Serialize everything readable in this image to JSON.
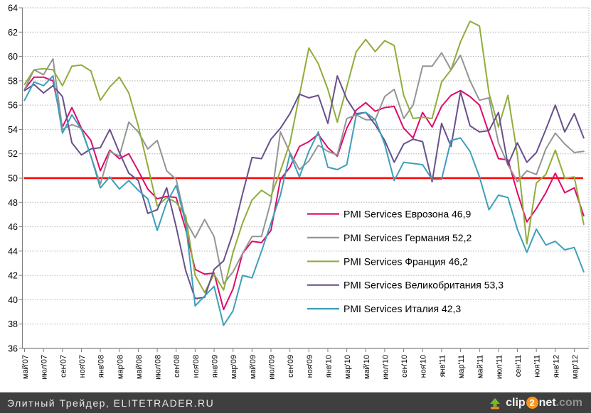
{
  "chart_data": {
    "type": "line",
    "title": "",
    "xlabel": "",
    "ylabel": "",
    "ylim": [
      36,
      64
    ],
    "yticks": [
      36,
      38,
      40,
      42,
      44,
      46,
      48,
      50,
      52,
      54,
      56,
      58,
      60,
      62,
      64
    ],
    "grid": "horizontal dotted",
    "legend_position": "inside middle-right",
    "reference_line": {
      "value": 50,
      "color": "#fe0000"
    },
    "x_start": "май'07",
    "x_end": "апр'12 (последняя точка за меткой мар'12)",
    "x_labels": [
      "май'07",
      "июл'07",
      "сен'07",
      "ноя'07",
      "янв'08",
      "мар'08",
      "май'08",
      "июл'08",
      "сен'08",
      "ноя'08",
      "янв'09",
      "мар'09",
      "май'09",
      "июл'09",
      "сен'09",
      "ноя'09",
      "янв'10",
      "мар'10",
      "май'10",
      "июл'10",
      "сен'10",
      "ноя'10",
      "янв'11",
      "мар'11",
      "май'11",
      "июл'11",
      "сен'11",
      "ноя'11",
      "янв'12",
      "мар'12"
    ],
    "x_label_every_n_months": 2,
    "points_per_series": 60,
    "colors": {
      "grid": "#b0b0b0",
      "axis": "#808080",
      "tick_label": "#000000",
      "legend_text": "#000000"
    },
    "series": [
      {
        "key": "eurozone",
        "name": "PMI Services Еврозона",
        "last_value": "46,9",
        "legend_label": "PMI Services Еврозона 46,9",
        "color": "#df0a6b",
        "values": [
          57.3,
          58.3,
          58.3,
          58.0,
          54.2,
          55.8,
          54.1,
          53.1,
          50.6,
          52.3,
          51.6,
          52.0,
          50.6,
          49.1,
          48.3,
          48.5,
          48.4,
          45.8,
          42.5,
          42.1,
          42.2,
          39.2,
          40.9,
          43.8,
          44.8,
          44.7,
          45.7,
          49.9,
          50.9,
          52.6,
          53.0,
          53.6,
          52.5,
          51.8,
          54.1,
          55.6,
          56.2,
          55.5,
          55.8,
          55.9,
          54.1,
          53.3,
          55.4,
          54.2,
          55.9,
          56.8,
          57.2,
          56.7,
          56.0,
          53.7,
          51.6,
          51.5,
          48.8,
          46.4,
          47.5,
          48.8,
          50.4,
          48.8,
          49.2,
          46.9
        ]
      },
      {
        "key": "germany",
        "name": "PMI Services Германия",
        "last_value": "52,2",
        "legend_label": "PMI Services Германия 52,2",
        "color": "#949494",
        "values": [
          57.3,
          58.9,
          58.5,
          59.8,
          54.0,
          54.4,
          54.1,
          51.8,
          49.5,
          52.2,
          51.8,
          54.6,
          53.8,
          52.4,
          53.1,
          50.6,
          49.9,
          46.5,
          45.1,
          46.6,
          45.2,
          41.3,
          42.3,
          43.8,
          45.2,
          45.2,
          48.1,
          53.8,
          52.1,
          50.7,
          51.4,
          52.7,
          52.2,
          51.9,
          54.9,
          55.2,
          54.8,
          54.8,
          56.7,
          57.3,
          54.9,
          56.0,
          59.2,
          59.2,
          60.3,
          58.9,
          60.1,
          58.0,
          56.4,
          56.6,
          52.9,
          51.1,
          49.7,
          50.6,
          50.3,
          52.4,
          53.7,
          52.8,
          52.1,
          52.2
        ]
      },
      {
        "key": "france",
        "name": "PMI Services Франция",
        "last_value": "46,2",
        "legend_label": "PMI Services Франция 46,2",
        "color": "#8fad3a",
        "values": [
          57.7,
          58.9,
          59.0,
          58.9,
          57.6,
          59.2,
          59.3,
          58.8,
          56.4,
          57.5,
          58.3,
          57.0,
          54.3,
          51.0,
          47.7,
          48.4,
          48.0,
          46.9,
          42.0,
          40.6,
          42.1,
          40.8,
          43.9,
          46.3,
          48.2,
          49.0,
          48.5,
          50.6,
          52.9,
          56.8,
          60.7,
          59.4,
          57.3,
          54.6,
          57.5,
          60.4,
          61.4,
          60.4,
          61.3,
          60.9,
          56.8,
          54.9,
          55.0,
          54.9,
          57.9,
          58.9,
          61.2,
          62.9,
          62.5,
          57.0,
          54.2,
          56.8,
          51.9,
          44.6,
          49.6,
          50.3,
          52.3,
          50.0,
          50.1,
          46.2
        ]
      },
      {
        "key": "uk",
        "name": "PMI Services Великобритания",
        "last_value": "53,3",
        "legend_label": "PMI Services Великобритания 53,3",
        "color": "#69508a",
        "values": [
          57.2,
          57.7,
          57.0,
          57.6,
          56.7,
          52.9,
          51.9,
          52.4,
          52.5,
          54.0,
          52.1,
          50.4,
          49.8,
          47.1,
          47.4,
          49.2,
          46.0,
          42.4,
          40.1,
          40.2,
          42.5,
          43.2,
          45.5,
          48.7,
          51.7,
          51.6,
          53.2,
          54.1,
          55.3,
          56.9,
          56.6,
          56.8,
          54.5,
          58.4,
          56.5,
          55.3,
          55.4,
          54.4,
          53.1,
          51.3,
          52.8,
          53.2,
          53.0,
          49.7,
          54.5,
          52.6,
          57.1,
          54.3,
          53.8,
          53.9,
          55.4,
          51.1,
          52.9,
          51.3,
          52.1,
          54.0,
          56.0,
          53.8,
          55.3,
          53.3
        ]
      },
      {
        "key": "italy",
        "name": "PMI Services Италия",
        "last_value": "42,3",
        "legend_label": "PMI Services Италия 42,3",
        "color": "#3d9fb9",
        "values": [
          56.4,
          57.9,
          57.6,
          58.4,
          53.7,
          55.2,
          54.0,
          51.8,
          49.2,
          50.1,
          49.1,
          49.8,
          49.0,
          48.3,
          45.7,
          48.0,
          49.4,
          46.3,
          39.5,
          40.3,
          41.1,
          37.9,
          39.1,
          42.0,
          41.8,
          44.0,
          46.3,
          48.6,
          52.0,
          50.1,
          52.2,
          53.8,
          50.9,
          50.7,
          51.1,
          55.2,
          55.4,
          54.8,
          52.8,
          49.8,
          51.3,
          51.2,
          51.1,
          49.9,
          49.9,
          53.1,
          53.3,
          52.2,
          50.1,
          47.4,
          48.6,
          48.4,
          45.8,
          43.9,
          45.8,
          44.5,
          44.8,
          44.1,
          44.3,
          42.3
        ]
      }
    ]
  },
  "footer": {
    "bar_color": "#3f3f3f",
    "credit_text": "Элитный Трейдер, ELITETRADER.RU",
    "logo": {
      "clip": "clip",
      "two": "2",
      "net": "net",
      "dotcom": ".com",
      "orange": "#f7941e",
      "green": "#76b82a"
    }
  }
}
